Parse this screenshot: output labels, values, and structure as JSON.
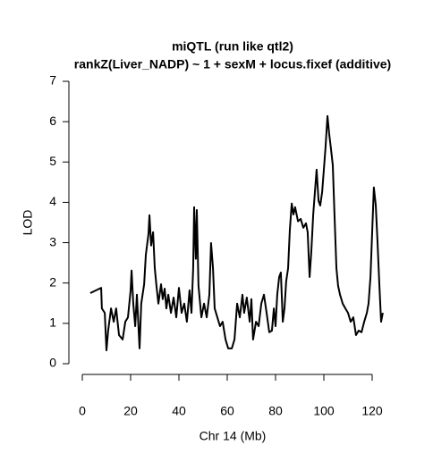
{
  "chart_data": {
    "type": "line",
    "title": "miQTL (run like qtl2)",
    "subtitle": "rankZ(Liver_NADP) ~ 1 + sexM + locus.fixef (additive)",
    "x_label": "Chr 14 (Mb)",
    "y_label": "LOD",
    "xlim": [
      0,
      120
    ],
    "ylim": [
      0,
      7
    ],
    "xticks": [
      0,
      20,
      40,
      60,
      80,
      100,
      120
    ],
    "yticks": [
      0,
      1,
      2,
      3,
      4,
      5,
      6,
      7
    ],
    "grid": false,
    "x": [
      3.3,
      7.8,
      8.1,
      9.3,
      10,
      10.7,
      11.9,
      13,
      14,
      15.2,
      16.7,
      17.8,
      18.9,
      20,
      20.4,
      21.1,
      21.9,
      22.6,
      23.7,
      24.4,
      25.6,
      26.3,
      27.4,
      27.8,
      28.5,
      29.3,
      30,
      30.7,
      31.5,
      32.6,
      33.3,
      34.1,
      34.8,
      35.6,
      36.7,
      37.8,
      38.9,
      40,
      41.1,
      42.2,
      43.3,
      44.4,
      45.2,
      45.9,
      46.3,
      47,
      47.4,
      48.1,
      49.3,
      50.4,
      51.5,
      52.6,
      53.3,
      54.1,
      54.8,
      55.9,
      57,
      58.1,
      59.3,
      60.4,
      61.9,
      63,
      64.1,
      65.2,
      66.3,
      67,
      68.1,
      69.3,
      70,
      70.7,
      71.9,
      73,
      74.1,
      75.2,
      76.3,
      77.4,
      78.5,
      79.3,
      80,
      80.7,
      81.5,
      82.2,
      83,
      83.7,
      84.4,
      85.2,
      85.9,
      86.7,
      87.4,
      88.1,
      89.3,
      90.4,
      91.5,
      92.6,
      93.3,
      94.1,
      94.8,
      95.6,
      96.3,
      97,
      97.8,
      98.5,
      99.3,
      100,
      100.7,
      101.5,
      102.2,
      103,
      103.7,
      104.4,
      105.2,
      105.9,
      106.7,
      107.8,
      108.9,
      110,
      111.1,
      112.2,
      113.3,
      114.4,
      115.6,
      116.7,
      117.8,
      118.5,
      119.3,
      120,
      120.7,
      121.5,
      122.2,
      123,
      123.7,
      124.4
    ],
    "series": [
      {
        "name": "LOD",
        "color": "#000000",
        "values": [
          1.75,
          1.88,
          1.37,
          1.26,
          0.33,
          0.82,
          1.37,
          1.04,
          1.37,
          0.71,
          0.6,
          1.04,
          1.15,
          1.82,
          2.31,
          1.49,
          0.93,
          1.71,
          0.38,
          1.49,
          1.97,
          2.7,
          3.22,
          3.68,
          2.93,
          3.26,
          2.37,
          1.93,
          1.49,
          1.97,
          1.6,
          1.86,
          1.37,
          1.71,
          1.26,
          1.64,
          1.15,
          1.88,
          1.26,
          1.49,
          1.04,
          1.82,
          1.26,
          2.37,
          3.88,
          2.6,
          3.81,
          1.93,
          1.15,
          1.49,
          1.15,
          1.71,
          2.99,
          2.37,
          1.37,
          1.15,
          0.93,
          1.04,
          0.6,
          0.38,
          0.38,
          0.6,
          1.49,
          1.15,
          1.71,
          1.26,
          1.64,
          1.04,
          1.6,
          0.6,
          1.04,
          0.93,
          1.49,
          1.71,
          1.26,
          0.78,
          0.82,
          1.37,
          0.93,
          1.71,
          2.15,
          2.26,
          1.04,
          1.37,
          2.04,
          2.37,
          3.3,
          3.97,
          3.7,
          3.88,
          3.53,
          3.59,
          3.37,
          3.48,
          3.26,
          2.15,
          2.77,
          3.7,
          4.26,
          4.81,
          4.04,
          3.92,
          4.26,
          4.81,
          5.37,
          6.14,
          5.7,
          5.3,
          4.92,
          3.7,
          2.37,
          1.93,
          1.71,
          1.49,
          1.37,
          1.26,
          1.04,
          1.15,
          0.71,
          0.82,
          0.78,
          1.04,
          1.26,
          1.49,
          2.15,
          3.26,
          4.37,
          3.92,
          3.04,
          1.93,
          1.04,
          1.26
        ]
      }
    ]
  }
}
